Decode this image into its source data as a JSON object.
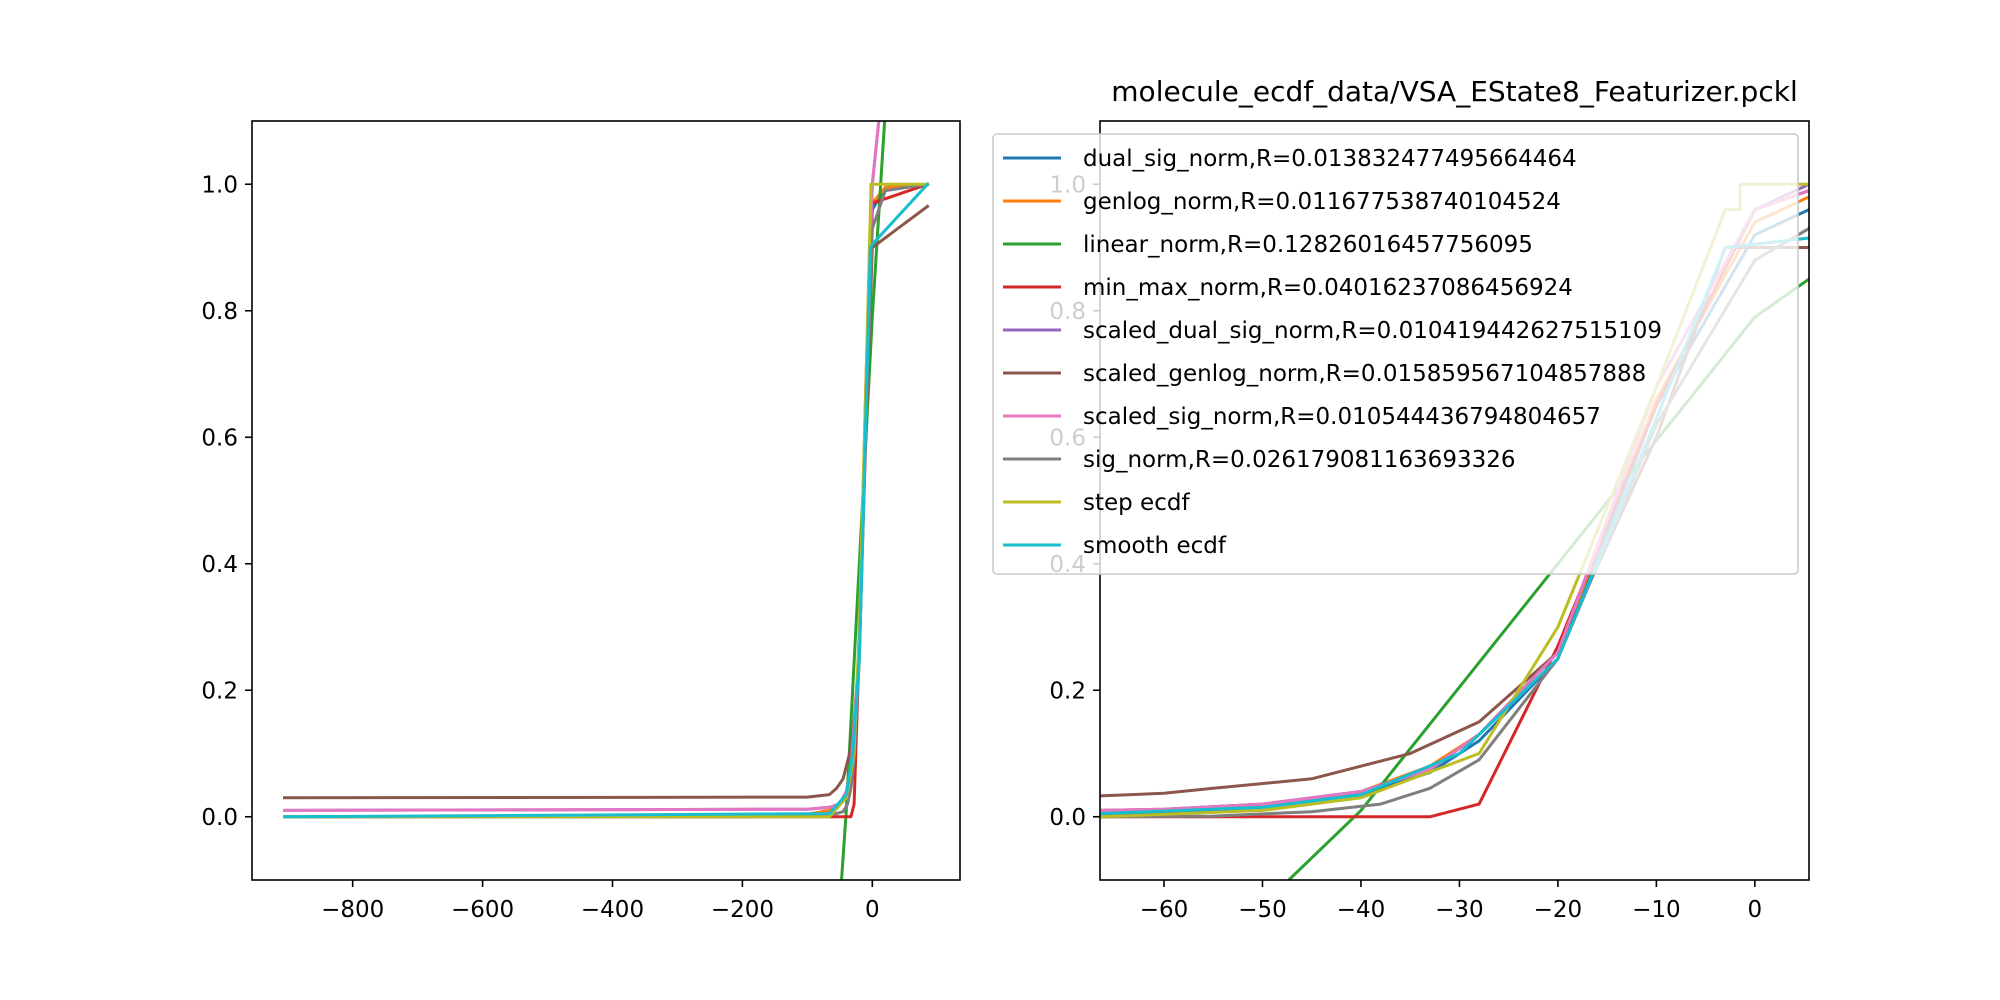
{
  "chart_data": [
    {
      "type": "line",
      "title": "",
      "xlabel": "",
      "ylabel": "",
      "xlim": [
        -955,
        135
      ],
      "ylim": [
        -0.1,
        1.1
      ],
      "xticks": [
        -800,
        -600,
        -400,
        -200,
        0
      ],
      "yticks": [
        0.0,
        0.2,
        0.4,
        0.6,
        0.8,
        1.0
      ],
      "xtick_labels": [
        "−800",
        "−600",
        "−400",
        "−200",
        "0"
      ],
      "ytick_labels": [
        "0.0",
        "0.2",
        "0.4",
        "0.6",
        "0.8",
        "1.0"
      ],
      "grid": false,
      "series": [
        {
          "key": "dual_sig_norm",
          "color": "#1f77b4",
          "points": [
            [
              -905,
              0.0
            ],
            [
              -200,
              0.0
            ],
            [
              -100,
              0.001
            ],
            [
              -66,
              0.005
            ],
            [
              -50,
              0.02
            ],
            [
              -40,
              0.035
            ],
            [
              -33,
              0.07
            ],
            [
              -20,
              0.25
            ],
            [
              -10,
              0.65
            ],
            [
              0,
              0.96
            ],
            [
              20,
              0.995
            ],
            [
              85,
              1.0
            ]
          ]
        },
        {
          "key": "genlog_norm",
          "color": "#ff7f0e",
          "points": [
            [
              -905,
              0.0
            ],
            [
              -200,
              0.001
            ],
            [
              -100,
              0.004
            ],
            [
              -66,
              0.01
            ],
            [
              -50,
              0.02
            ],
            [
              -40,
              0.04
            ],
            [
              -33,
              0.08
            ],
            [
              -20,
              0.26
            ],
            [
              -10,
              0.66
            ],
            [
              0,
              0.97
            ],
            [
              20,
              0.995
            ],
            [
              85,
              1.0
            ]
          ]
        },
        {
          "key": "linear_norm",
          "color": "#2ca02c",
          "points": [
            [
              -50,
              -0.14
            ],
            [
              -40,
              0.01
            ],
            [
              -20,
              0.4
            ],
            [
              0,
              0.79
            ],
            [
              25,
              1.2
            ]
          ]
        },
        {
          "key": "min_max_norm",
          "color": "#d62728",
          "points": [
            [
              -905,
              0.0
            ],
            [
              -33,
              0.0
            ],
            [
              -28,
              0.02
            ],
            [
              -20,
              0.27
            ],
            [
              -10,
              0.65
            ],
            [
              0,
              0.97
            ],
            [
              85,
              1.0
            ]
          ]
        },
        {
          "key": "scaled_dual_sig_norm",
          "color": "#9467bd",
          "points": [
            [
              -905,
              0.01
            ],
            [
              -100,
              0.012
            ],
            [
              -66,
              0.015
            ],
            [
              -50,
              0.02
            ],
            [
              -40,
              0.04
            ],
            [
              -33,
              0.075
            ],
            [
              -20,
              0.26
            ],
            [
              -10,
              0.68
            ],
            [
              0,
              1.0
            ],
            [
              10,
              1.1
            ],
            [
              25,
              1.25
            ]
          ]
        },
        {
          "key": "scaled_genlog_norm",
          "color": "#8c564b",
          "points": [
            [
              -905,
              0.03
            ],
            [
              -100,
              0.031
            ],
            [
              -66,
              0.035
            ],
            [
              -55,
              0.045
            ],
            [
              -45,
              0.06
            ],
            [
              -35,
              0.1
            ],
            [
              -28,
              0.15
            ],
            [
              -20,
              0.26
            ],
            [
              -10,
              0.6
            ],
            [
              0,
              0.9
            ],
            [
              85,
              0.965
            ]
          ]
        },
        {
          "key": "scaled_sig_norm",
          "color": "#e377c2",
          "points": [
            [
              -905,
              0.01
            ],
            [
              -100,
              0.012
            ],
            [
              -66,
              0.015
            ],
            [
              -50,
              0.02
            ],
            [
              -40,
              0.04
            ],
            [
              -33,
              0.075
            ],
            [
              -20,
              0.26
            ],
            [
              -10,
              0.68
            ],
            [
              0,
              1.0
            ],
            [
              10,
              1.1
            ],
            [
              25,
              1.25
            ]
          ]
        },
        {
          "key": "sig_norm",
          "color": "#7f7f7f",
          "points": [
            [
              -905,
              0.0
            ],
            [
              -200,
              0.0
            ],
            [
              -66,
              0.002
            ],
            [
              -45,
              0.008
            ],
            [
              -38,
              0.02
            ],
            [
              -33,
              0.045
            ],
            [
              -28,
              0.09
            ],
            [
              -20,
              0.25
            ],
            [
              -10,
              0.62
            ],
            [
              0,
              0.93
            ],
            [
              20,
              0.99
            ],
            [
              85,
              1.0
            ]
          ]
        },
        {
          "key": "step_ecdf",
          "color": "#bcbd22",
          "points": [
            [
              -905,
              0.0
            ],
            [
              -66,
              0.0
            ],
            [
              -40,
              0.03
            ],
            [
              -28,
              0.1
            ],
            [
              -20,
              0.3
            ],
            [
              -10,
              0.68
            ],
            [
              -3,
              0.96
            ],
            [
              -2,
              1.0
            ],
            [
              85,
              1.0
            ]
          ]
        },
        {
          "key": "smooth_ecdf",
          "color": "#17becf",
          "points": [
            [
              -905,
              0.0
            ],
            [
              -66,
              0.005
            ],
            [
              -40,
              0.035
            ],
            [
              -30,
              0.1
            ],
            [
              -20,
              0.25
            ],
            [
              -10,
              0.63
            ],
            [
              -3,
              0.9
            ],
            [
              0,
              0.905
            ],
            [
              85,
              1.0
            ]
          ]
        }
      ]
    },
    {
      "type": "line",
      "title": "molecule_ecdf_data/VSA_EState8_Featurizer.pckl",
      "xlabel": "",
      "ylabel": "",
      "xlim": [
        -66.5,
        5.5
      ],
      "ylim": [
        -0.1,
        1.1
      ],
      "xticks": [
        -60,
        -50,
        -40,
        -30,
        -20,
        -10,
        0
      ],
      "yticks": [
        0.0,
        0.2,
        0.4,
        0.6,
        0.8,
        1.0
      ],
      "xtick_labels": [
        "−60",
        "−50",
        "−40",
        "−30",
        "−20",
        "−10",
        "0"
      ],
      "ytick_labels": [
        "0.0",
        "0.2",
        "0.4",
        "0.6",
        "0.8",
        "1.0"
      ],
      "grid": false,
      "legend_position": "upper-right",
      "series": [
        {
          "key": "dual_sig_norm",
          "color": "#1f77b4",
          "points": [
            [
              -66.5,
              0.005
            ],
            [
              -60,
              0.007
            ],
            [
              -50,
              0.015
            ],
            [
              -40,
              0.035
            ],
            [
              -33,
              0.07
            ],
            [
              -28,
              0.12
            ],
            [
              -20,
              0.25
            ],
            [
              -10,
              0.65
            ],
            [
              0,
              0.92
            ],
            [
              5.5,
              0.96
            ]
          ]
        },
        {
          "key": "genlog_norm",
          "color": "#ff7f0e",
          "points": [
            [
              -66.5,
              0.01
            ],
            [
              -60,
              0.012
            ],
            [
              -50,
              0.02
            ],
            [
              -40,
              0.04
            ],
            [
              -33,
              0.08
            ],
            [
              -28,
              0.13
            ],
            [
              -20,
              0.26
            ],
            [
              -10,
              0.66
            ],
            [
              0,
              0.94
            ],
            [
              5.5,
              0.98
            ]
          ]
        },
        {
          "key": "linear_norm",
          "color": "#2ca02c",
          "points": [
            [
              -50,
              -0.14
            ],
            [
              -40,
              0.01
            ],
            [
              -20,
              0.4
            ],
            [
              0,
              0.79
            ],
            [
              5.5,
              0.85
            ]
          ]
        },
        {
          "key": "min_max_norm",
          "color": "#d62728",
          "points": [
            [
              -66.5,
              0.0
            ],
            [
              -33,
              0.0
            ],
            [
              -28,
              0.02
            ],
            [
              -20,
              0.27
            ],
            [
              -10,
              0.65
            ],
            [
              0,
              0.96
            ],
            [
              5.5,
              0.99
            ]
          ]
        },
        {
          "key": "scaled_dual_sig_norm",
          "color": "#9467bd",
          "points": [
            [
              -66.5,
              0.01
            ],
            [
              -60,
              0.012
            ],
            [
              -50,
              0.02
            ],
            [
              -40,
              0.04
            ],
            [
              -33,
              0.075
            ],
            [
              -28,
              0.13
            ],
            [
              -20,
              0.26
            ],
            [
              -10,
              0.68
            ],
            [
              0,
              0.96
            ],
            [
              5.5,
              1.0
            ]
          ]
        },
        {
          "key": "scaled_genlog_norm",
          "color": "#8c564b",
          "points": [
            [
              -66.5,
              0.033
            ],
            [
              -60,
              0.037
            ],
            [
              -55,
              0.045
            ],
            [
              -45,
              0.06
            ],
            [
              -35,
              0.1
            ],
            [
              -28,
              0.15
            ],
            [
              -20,
              0.26
            ],
            [
              -10,
              0.6
            ],
            [
              -3,
              0.9
            ],
            [
              5.5,
              0.9
            ]
          ]
        },
        {
          "key": "scaled_sig_norm",
          "color": "#e377c2",
          "points": [
            [
              -66.5,
              0.01
            ],
            [
              -60,
              0.012
            ],
            [
              -50,
              0.02
            ],
            [
              -40,
              0.04
            ],
            [
              -33,
              0.075
            ],
            [
              -28,
              0.13
            ],
            [
              -20,
              0.26
            ],
            [
              -10,
              0.68
            ],
            [
              0,
              0.96
            ],
            [
              5.5,
              0.99
            ]
          ]
        },
        {
          "key": "sig_norm",
          "color": "#7f7f7f",
          "points": [
            [
              -66.5,
              0.0
            ],
            [
              -55,
              0.001
            ],
            [
              -45,
              0.008
            ],
            [
              -38,
              0.02
            ],
            [
              -33,
              0.045
            ],
            [
              -28,
              0.09
            ],
            [
              -20,
              0.25
            ],
            [
              -10,
              0.62
            ],
            [
              0,
              0.88
            ],
            [
              5.5,
              0.93
            ]
          ]
        },
        {
          "key": "step_ecdf",
          "color": "#bcbd22",
          "points": [
            [
              -66.5,
              0.0
            ],
            [
              -50,
              0.01
            ],
            [
              -40,
              0.03
            ],
            [
              -28,
              0.1
            ],
            [
              -20,
              0.3
            ],
            [
              -10,
              0.68
            ],
            [
              -3,
              0.96
            ],
            [
              -1.5,
              0.96
            ],
            [
              -1.5,
              1.0
            ],
            [
              5.5,
              1.0
            ]
          ]
        },
        {
          "key": "smooth_ecdf",
          "color": "#17becf",
          "points": [
            [
              -66.5,
              0.005
            ],
            [
              -50,
              0.015
            ],
            [
              -40,
              0.035
            ],
            [
              -30,
              0.1
            ],
            [
              -20,
              0.25
            ],
            [
              -10,
              0.63
            ],
            [
              -3,
              0.9
            ],
            [
              0,
              0.905
            ],
            [
              5.5,
              0.915
            ]
          ]
        }
      ],
      "legend": [
        {
          "label": "dual_sig_norm,R=0.013832477495664464",
          "color": "#1f77b4"
        },
        {
          "label": "genlog_norm,R=0.011677538740104524",
          "color": "#ff7f0e"
        },
        {
          "label": "linear_norm,R=0.12826016457756095",
          "color": "#2ca02c"
        },
        {
          "label": "min_max_norm,R=0.04016237086456924",
          "color": "#d62728"
        },
        {
          "label": "scaled_dual_sig_norm,R=0.010419442627515109",
          "color": "#9467bd"
        },
        {
          "label": "scaled_genlog_norm,R=0.015859567104857888",
          "color": "#8c564b"
        },
        {
          "label": "scaled_sig_norm,R=0.010544436794804657",
          "color": "#e377c2"
        },
        {
          "label": "sig_norm,R=0.026179081163693326",
          "color": "#7f7f7f"
        },
        {
          "label": "step ecdf",
          "color": "#bcbd22"
        },
        {
          "label": "smooth ecdf",
          "color": "#17becf"
        }
      ]
    }
  ]
}
